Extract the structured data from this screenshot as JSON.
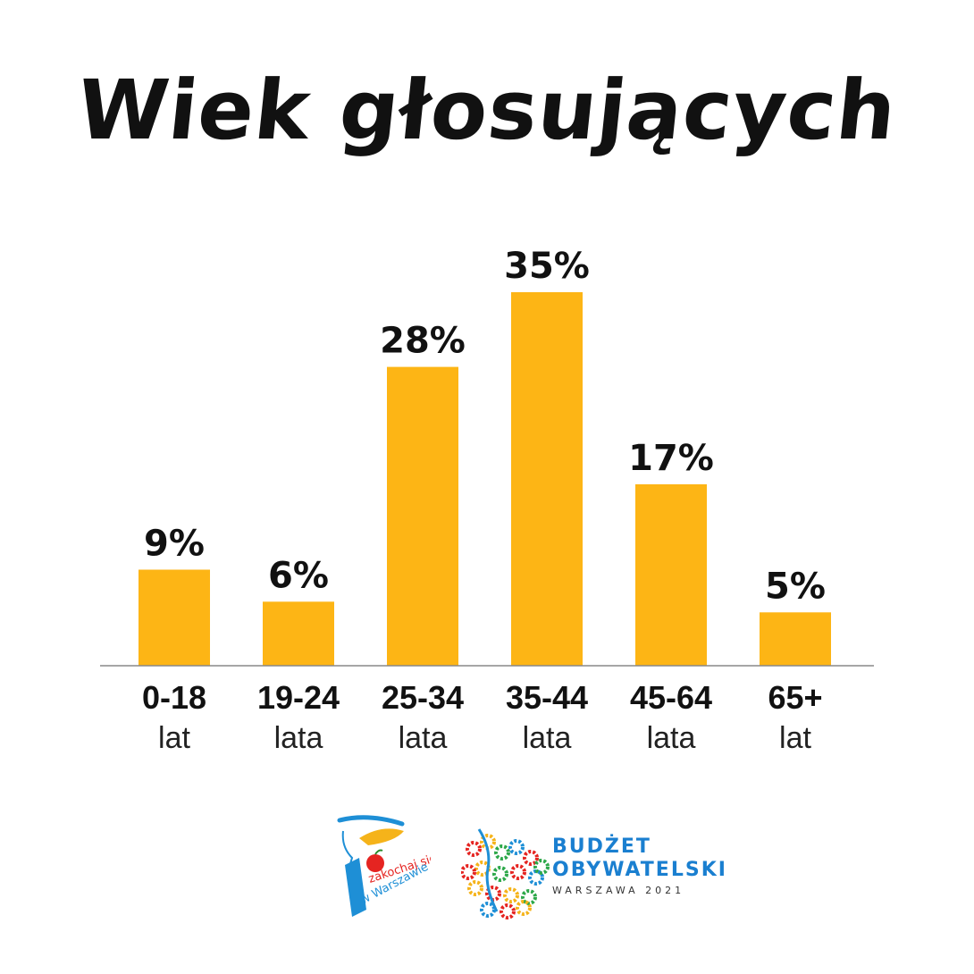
{
  "chart_data": {
    "type": "bar",
    "title": "Wiek głosujących",
    "categories": [
      {
        "top": "0-18",
        "bottom": "lat"
      },
      {
        "top": "19-24",
        "bottom": "lata"
      },
      {
        "top": "25-34",
        "bottom": "lata"
      },
      {
        "top": "35-44",
        "bottom": "lata"
      },
      {
        "top": "45-64",
        "bottom": "lata"
      },
      {
        "top": "65+",
        "bottom": "lat"
      }
    ],
    "values": [
      9,
      6,
      28,
      35,
      17,
      5
    ],
    "value_labels": [
      "9%",
      "6%",
      "28%",
      "35%",
      "17%",
      "5%"
    ],
    "ylim": [
      0,
      35
    ],
    "bar_color": "#FDB515",
    "grid": false,
    "legend": "none"
  },
  "logos": {
    "zakochaj": {
      "line1": "zakochaj się",
      "line2": "w Warszawie",
      "apple_color": "#E52421",
      "brush_blue": "#1E8FD6",
      "brush_yellow": "#F5B31A"
    },
    "budzet": {
      "line1": "BUDŻET",
      "line2": "OBYWATELSKI",
      "line3": "WARSZAWA 2021",
      "color": "#1A7FD0"
    }
  }
}
